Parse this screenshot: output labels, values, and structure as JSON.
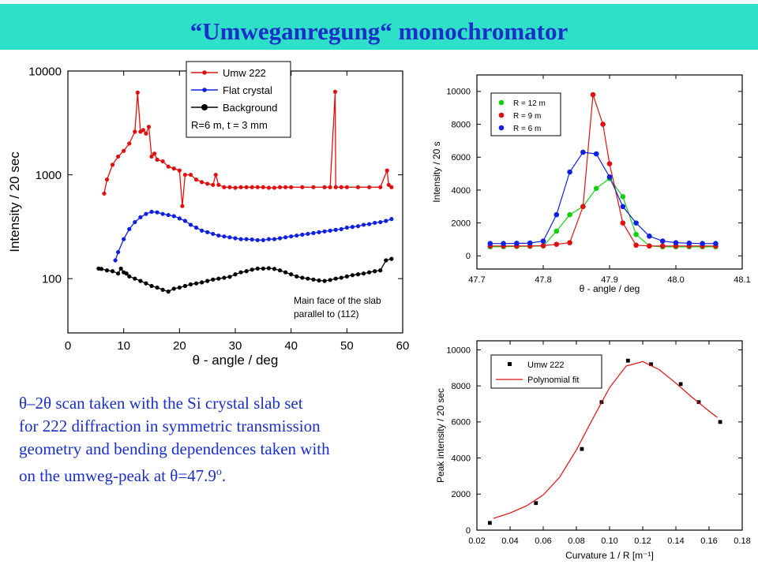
{
  "title": "“Umweganregung“ monochromator",
  "caption": {
    "line1": "θ–2θ scan taken with the Si crystal slab set",
    "line2": "for 222 diffraction in symmetric transmission",
    "line3": "geometry and bending dependences taken with",
    "line4_pre": "on the umweg-peak at θ=47.9",
    "line4_sup": "o",
    "line4_post": "."
  },
  "colors": {
    "red": "#e01010",
    "blue": "#1020e0",
    "black": "#000000",
    "green": "#10d010",
    "title_bg": "#2fe0c8",
    "text_blue": "#1a2fc8"
  },
  "chart_data": [
    {
      "type": "line",
      "xlabel": "θ - angle / deg",
      "ylabel": "Intensity / 20 sec",
      "xlim": [
        0,
        60
      ],
      "ylim": [
        30,
        10000
      ],
      "yscale": "log",
      "xticks": [
        "0",
        "10",
        "20",
        "30",
        "40",
        "50",
        "60"
      ],
      "yticks": [
        "100",
        "1000",
        "10000"
      ],
      "legend": {
        "entries": [
          "Umw 222",
          "Flat crystal",
          "Background"
        ],
        "extra": "R=6 m, t = 3 mm",
        "position": "top-right"
      },
      "annotation": [
        "Main face of the slab",
        "parallel to (112)"
      ],
      "series": [
        {
          "name": "Umw 222",
          "color": "#e01010",
          "x": [
            6.5,
            7,
            8,
            9,
            10,
            11,
            12,
            12.5,
            13,
            13.5,
            14,
            14.5,
            15,
            15.5,
            16,
            17,
            18,
            19,
            20,
            20.5,
            21,
            22,
            23,
            24,
            25,
            26,
            26.5,
            27,
            28,
            29,
            30,
            31,
            32,
            33,
            34,
            35,
            36,
            37,
            38,
            39,
            40,
            42,
            44,
            46,
            47,
            47.9,
            48,
            49,
            50,
            52,
            54,
            56,
            57.2,
            57.5,
            58
          ],
          "y": [
            660,
            900,
            1250,
            1500,
            1700,
            2000,
            2600,
            6200,
            2600,
            2700,
            2500,
            2900,
            1500,
            1600,
            1400,
            1350,
            1200,
            1150,
            1100,
            500,
            1000,
            1000,
            900,
            850,
            820,
            800,
            1000,
            800,
            760,
            760,
            750,
            760,
            760,
            760,
            760,
            760,
            750,
            750,
            760,
            760,
            760,
            760,
            760,
            760,
            760,
            6300,
            760,
            760,
            760,
            760,
            760,
            760,
            1100,
            800,
            760
          ]
        },
        {
          "name": "Flat crystal",
          "color": "#1020e0",
          "x": [
            8.5,
            9,
            10,
            11,
            12,
            13,
            14,
            15,
            16,
            17,
            18,
            19,
            20,
            21,
            22,
            23,
            24,
            25,
            26,
            27,
            28,
            29,
            30,
            31,
            32,
            33,
            34,
            35,
            36,
            37,
            38,
            39,
            40,
            41,
            42,
            43,
            44,
            45,
            46,
            47,
            48,
            49,
            50,
            51,
            52,
            53,
            54,
            55,
            56,
            57,
            58
          ],
          "y": [
            150,
            180,
            240,
            300,
            350,
            390,
            420,
            440,
            435,
            420,
            410,
            400,
            380,
            360,
            330,
            310,
            290,
            280,
            270,
            260,
            255,
            250,
            245,
            240,
            240,
            238,
            235,
            235,
            240,
            240,
            245,
            250,
            255,
            260,
            265,
            270,
            275,
            280,
            285,
            290,
            295,
            300,
            310,
            315,
            320,
            330,
            335,
            345,
            350,
            360,
            375
          ]
        },
        {
          "name": "Background",
          "color": "#000000",
          "x": [
            5.5,
            6,
            7,
            8,
            9,
            9.5,
            10,
            10.5,
            11,
            12,
            13,
            14,
            15,
            16,
            17,
            18,
            19,
            20,
            21,
            22,
            23,
            24,
            25,
            26,
            27,
            28,
            29,
            30,
            31,
            32,
            33,
            34,
            35,
            36,
            37,
            38,
            39,
            40,
            41,
            42,
            43,
            44,
            45,
            46,
            47,
            48,
            49,
            50,
            51,
            52,
            53,
            54,
            55,
            56,
            57,
            58
          ],
          "y": [
            125,
            124,
            120,
            118,
            112,
            125,
            115,
            112,
            105,
            100,
            95,
            90,
            85,
            82,
            78,
            75,
            80,
            82,
            85,
            88,
            90,
            92,
            95,
            98,
            100,
            102,
            104,
            110,
            115,
            118,
            122,
            125,
            125,
            126,
            124,
            120,
            115,
            110,
            105,
            102,
            100,
            98,
            96,
            95,
            97,
            100,
            102,
            105,
            108,
            110,
            112,
            115,
            118,
            120,
            150,
            155
          ]
        }
      ]
    },
    {
      "type": "line",
      "xlabel": "θ - angle / deg",
      "ylabel": "Intensity / 20 s",
      "xlim": [
        47.7,
        48.1
      ],
      "ylim": [
        -800,
        11000
      ],
      "xticks": [
        "47.7",
        "47.8",
        "47.9",
        "48.0",
        "48.1"
      ],
      "yticks": [
        "0",
        "2000",
        "4000",
        "6000",
        "8000",
        "10000"
      ],
      "legend": {
        "entries": [
          "R = 12 m",
          "R = 9 m",
          "R = 6 m"
        ],
        "position": "top-left"
      },
      "series": [
        {
          "name": "R = 12 m",
          "color": "#10d010",
          "x": [
            47.72,
            47.74,
            47.76,
            47.78,
            47.8,
            47.82,
            47.84,
            47.86,
            47.88,
            47.9,
            47.92,
            47.94,
            47.96,
            47.98,
            48.0,
            48.02,
            48.04,
            48.06
          ],
          "y": [
            550,
            560,
            570,
            580,
            600,
            1500,
            2500,
            3000,
            4100,
            4700,
            3600,
            1300,
            600,
            550,
            550,
            550,
            550,
            550
          ]
        },
        {
          "name": "R = 9 m",
          "color": "#e01010",
          "x": [
            47.72,
            47.74,
            47.76,
            47.78,
            47.8,
            47.82,
            47.84,
            47.86,
            47.875,
            47.89,
            47.9,
            47.92,
            47.94,
            47.96,
            47.98,
            48.0,
            48.02,
            48.04,
            48.06
          ],
          "y": [
            600,
            600,
            600,
            600,
            620,
            700,
            800,
            3000,
            9800,
            8000,
            5600,
            2000,
            650,
            600,
            600,
            600,
            600,
            600,
            600
          ]
        },
        {
          "name": "R = 6 m",
          "color": "#1020e0",
          "x": [
            47.72,
            47.74,
            47.76,
            47.78,
            47.8,
            47.82,
            47.84,
            47.86,
            47.88,
            47.9,
            47.92,
            47.94,
            47.96,
            47.98,
            48.0,
            48.02,
            48.04,
            48.06
          ],
          "y": [
            750,
            750,
            760,
            780,
            900,
            2500,
            5100,
            6300,
            6200,
            4800,
            3000,
            2000,
            1200,
            900,
            800,
            770,
            750,
            750
          ]
        }
      ]
    },
    {
      "type": "scatter",
      "xlabel": "Curvature  1 / R  [m⁻¹]",
      "ylabel": "Peak intensity / 20 sec",
      "xlim": [
        0.02,
        0.18
      ],
      "ylim": [
        0,
        10500
      ],
      "xticks": [
        "0.02",
        "0.04",
        "0.06",
        "0.08",
        "0.10",
        "0.12",
        "0.14",
        "0.16",
        "0.18"
      ],
      "yticks": [
        "0",
        "2000",
        "4000",
        "6000",
        "8000",
        "10000"
      ],
      "legend": {
        "entries": [
          "Umw 222",
          "Polynomial fit"
        ],
        "position": "top-left"
      },
      "series": [
        {
          "name": "Umw 222",
          "color": "#000000",
          "x": [
            0.0278,
            0.0556,
            0.0833,
            0.0952,
            0.1111,
            0.125,
            0.1429,
            0.1538,
            0.1667
          ],
          "y": [
            400,
            1500,
            4500,
            7100,
            9400,
            9200,
            8100,
            7100,
            6000
          ]
        },
        {
          "name": "Polynomial fit",
          "color": "#e01010",
          "x": [
            0.03,
            0.04,
            0.05,
            0.06,
            0.07,
            0.08,
            0.09,
            0.1,
            0.11,
            0.12,
            0.13,
            0.14,
            0.15,
            0.16,
            0.165
          ],
          "y": [
            650,
            950,
            1350,
            1950,
            2950,
            4450,
            6200,
            7900,
            9100,
            9350,
            8900,
            8150,
            7350,
            6600,
            6250
          ]
        }
      ]
    }
  ]
}
